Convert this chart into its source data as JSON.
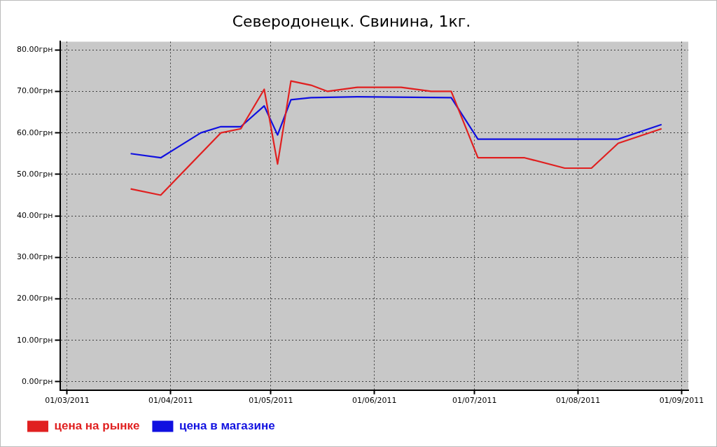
{
  "chart_data": {
    "type": "line",
    "title": "Северодонецк. Свинина, 1кг.",
    "series": [
      {
        "name": "цена на рынке",
        "color": "#e02020",
        "x": [
          "2011-03-20",
          "2011-03-29",
          "2011-04-16",
          "2011-04-22",
          "2011-04-29",
          "2011-05-03",
          "2011-05-07",
          "2011-05-13",
          "2011-05-18",
          "2011-05-27",
          "2011-06-09",
          "2011-06-18",
          "2011-06-24",
          "2011-07-02",
          "2011-07-16",
          "2011-07-28",
          "2011-08-05",
          "2011-08-13",
          "2011-08-26"
        ],
        "values": [
          46.5,
          45,
          60,
          61,
          70.5,
          52.5,
          72.5,
          71.5,
          70,
          71,
          71,
          70,
          70,
          54,
          54,
          51.5,
          51.5,
          57.5,
          61
        ]
      },
      {
        "name": "цена в магазине",
        "color": "#1010e0",
        "x": [
          "2011-03-20",
          "2011-03-29",
          "2011-04-10",
          "2011-04-16",
          "2011-04-22",
          "2011-04-29",
          "2011-05-03",
          "2011-05-07",
          "2011-05-13",
          "2011-05-27",
          "2011-06-24",
          "2011-07-02",
          "2011-08-13",
          "2011-08-26"
        ],
        "values": [
          55,
          54,
          60,
          61.5,
          61.5,
          66.5,
          59.5,
          68,
          68.5,
          68.7,
          68.5,
          58.5,
          58.5,
          62
        ]
      }
    ],
    "xlim": [
      "2011-02-27",
      "2011-09-03"
    ],
    "xticks": [
      {
        "value": "2011-03-01",
        "label": "01/03/2011"
      },
      {
        "value": "2011-04-01",
        "label": "01/04/2011"
      },
      {
        "value": "2011-05-01",
        "label": "01/05/2011"
      },
      {
        "value": "2011-06-01",
        "label": "01/06/2011"
      },
      {
        "value": "2011-07-01",
        "label": "01/07/2011"
      },
      {
        "value": "2011-08-01",
        "label": "01/08/2011"
      },
      {
        "value": "2011-09-01",
        "label": "01/09/2011"
      }
    ],
    "ylim": [
      -2,
      82
    ],
    "yticks": [
      {
        "value": 0,
        "label": "0.00грн"
      },
      {
        "value": 10,
        "label": "10.00грн"
      },
      {
        "value": 20,
        "label": "20.00грн"
      },
      {
        "value": 30,
        "label": "30.00грн"
      },
      {
        "value": 40,
        "label": "40.00грн"
      },
      {
        "value": 50,
        "label": "50.00грн"
      },
      {
        "value": 60,
        "label": "60.00грн"
      },
      {
        "value": 70,
        "label": "70.00грн"
      },
      {
        "value": 80,
        "label": "80.00грн"
      }
    ],
    "grid": true,
    "legend": "bottom left",
    "marker": "none",
    "line_style": "solid"
  }
}
